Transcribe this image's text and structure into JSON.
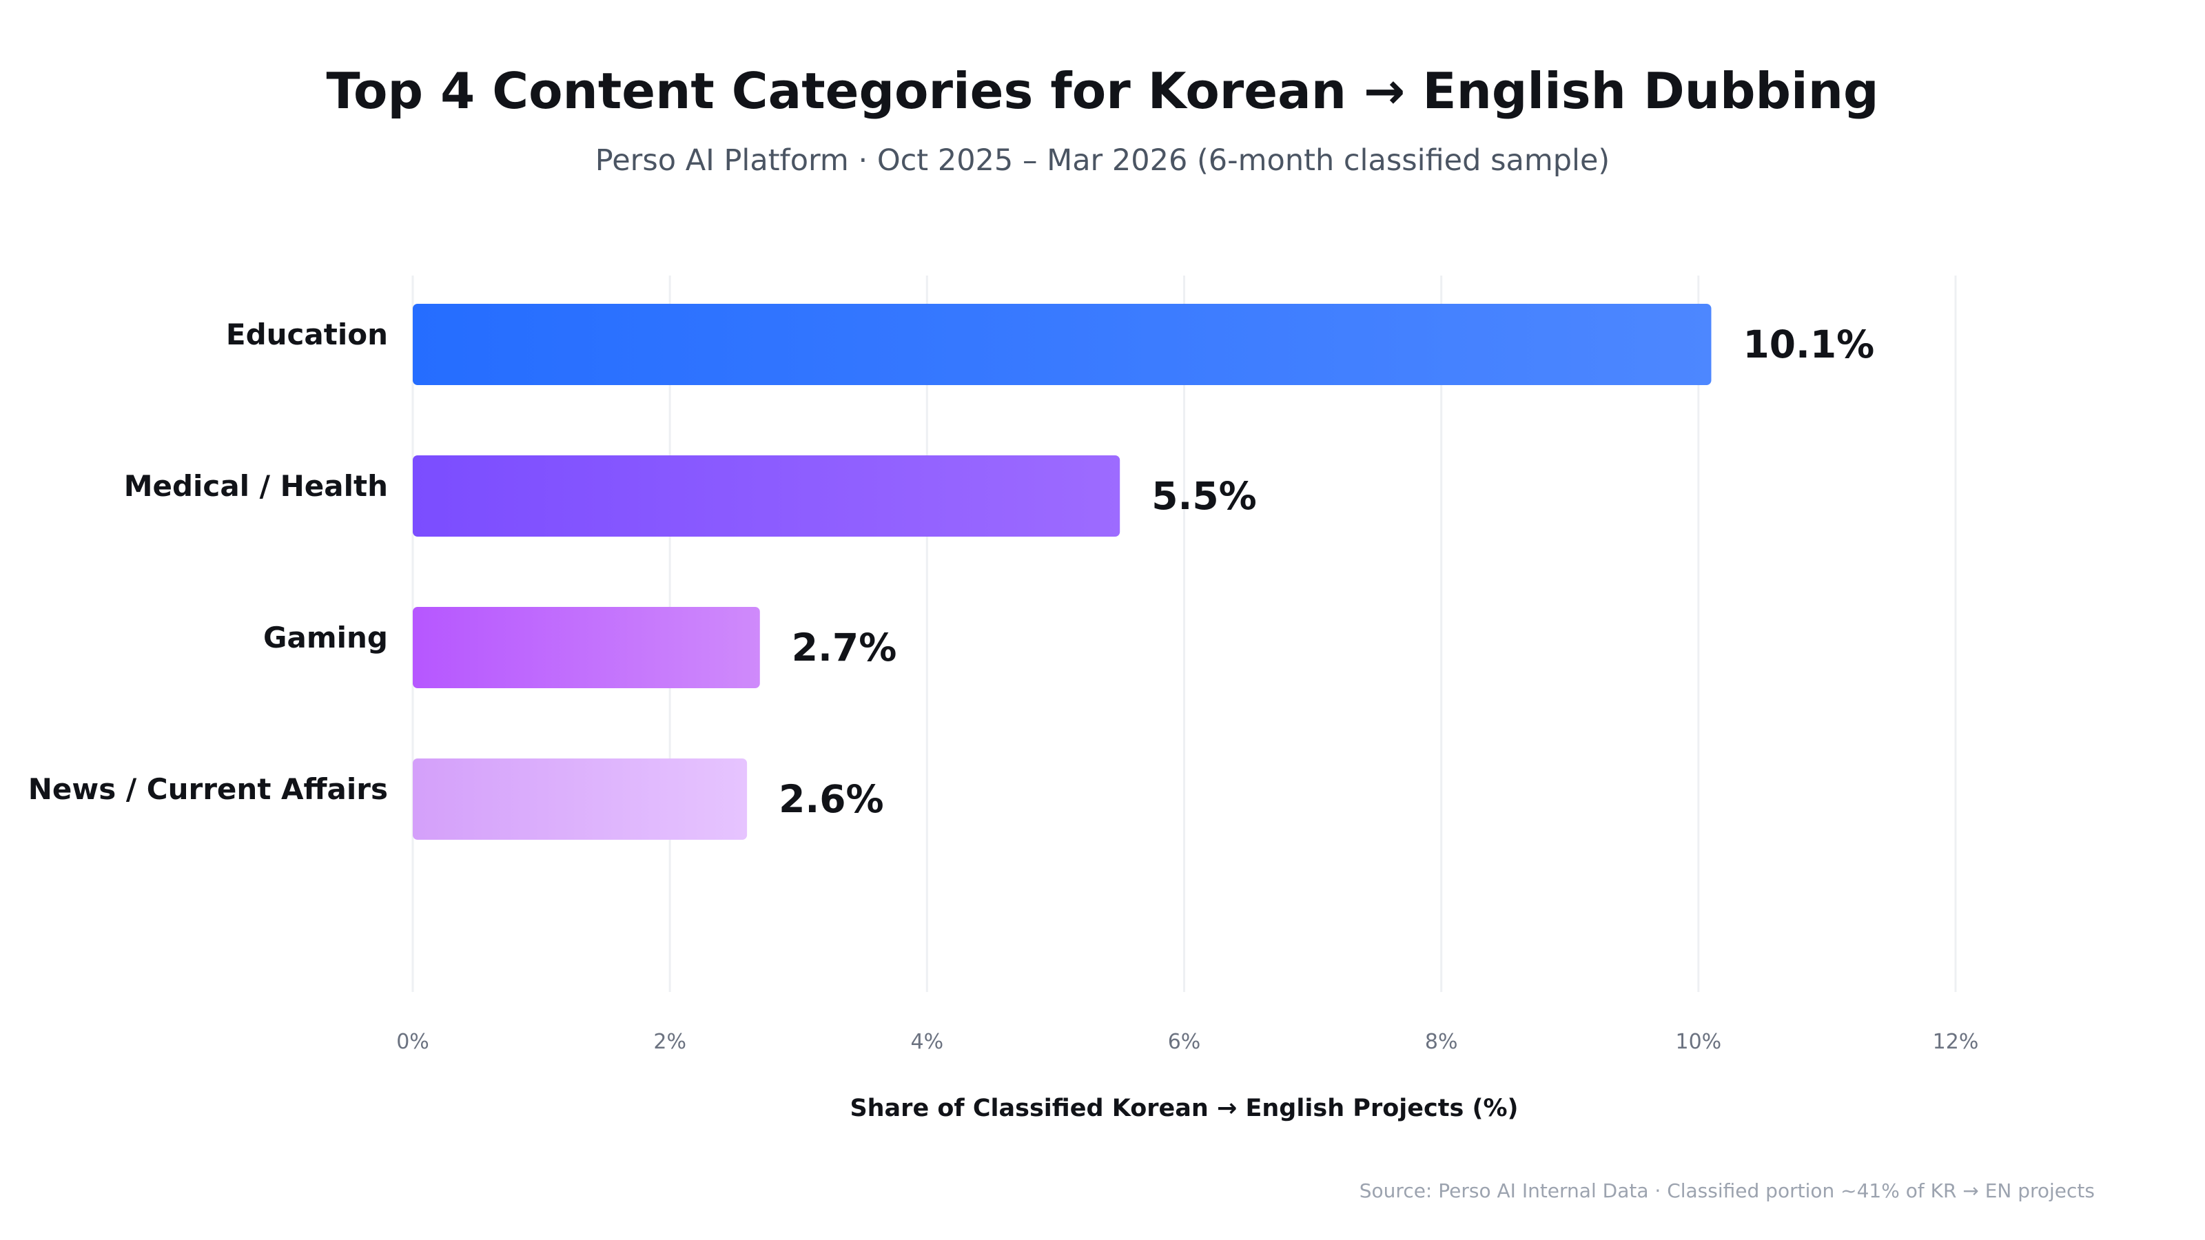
{
  "chart_data": {
    "type": "bar",
    "orientation": "horizontal",
    "title": "Top 4 Content Categories for Korean → English Dubbing",
    "subtitle": "Perso AI Platform · Oct 2025 – Mar 2026 (6-month classified sample)",
    "categories": [
      "Education",
      "Medical / Health",
      "Gaming",
      "News / Current Affairs"
    ],
    "values": [
      10.1,
      5.5,
      2.7,
      2.6
    ],
    "value_labels": [
      "10.1%",
      "5.5%",
      "2.7%",
      "2.6%"
    ],
    "xlabel": "Share of Classified Korean → English Projects (%)",
    "ylabel": "",
    "xlim": [
      0,
      12
    ],
    "xticks": [
      0,
      2,
      4,
      6,
      8,
      10,
      12
    ],
    "xtick_labels": [
      "0%",
      "2%",
      "4%",
      "6%",
      "8%",
      "10%",
      "12%"
    ],
    "grid": "vertical",
    "bar_colors": [
      [
        "#256dff",
        "#4d87ff"
      ],
      [
        "#7b4dff",
        "#9d6bff"
      ],
      [
        "#b657ff",
        "#cf8afb"
      ],
      [
        "#d4a0fa",
        "#e6c4ff"
      ]
    ],
    "source": "Source: Perso AI Internal Data · Classified portion ~41% of KR → EN projects"
  }
}
